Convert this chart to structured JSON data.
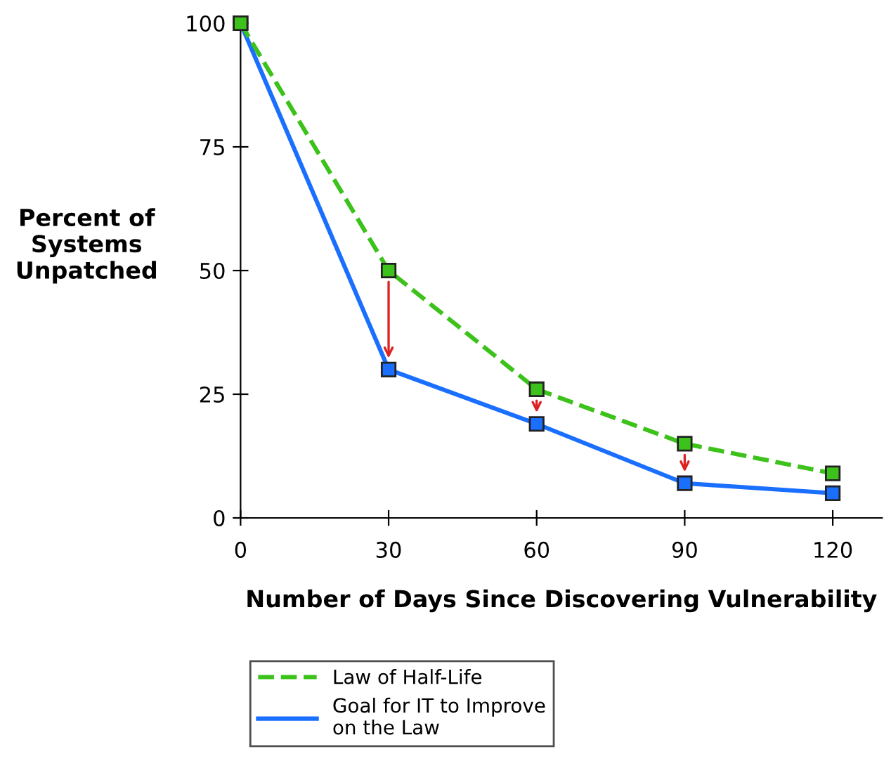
{
  "chart_data": {
    "type": "line",
    "xlabel": "Number of Days Since Discovering Vulnerability",
    "ylabel": "Percent of\nSystems\nUnpatched",
    "x": [
      0,
      30,
      60,
      90,
      120
    ],
    "xlim": [
      0,
      130
    ],
    "xticks": [
      0,
      30,
      60,
      90,
      120
    ],
    "ylim": [
      0,
      100
    ],
    "yticks": [
      0,
      25,
      50,
      75,
      100
    ],
    "series": [
      {
        "name": "Law of Half-Life",
        "color": "#3cc21a",
        "values": [
          100,
          50,
          26,
          15,
          9
        ],
        "line_style": "dashed"
      },
      {
        "name": "Goal for IT to Improve\non the Law",
        "color": "#1a6fff",
        "values": [
          100,
          30,
          19,
          7,
          5
        ],
        "line_style": "solid"
      }
    ],
    "marker": "square",
    "grid": false,
    "legend": "bottom"
  }
}
